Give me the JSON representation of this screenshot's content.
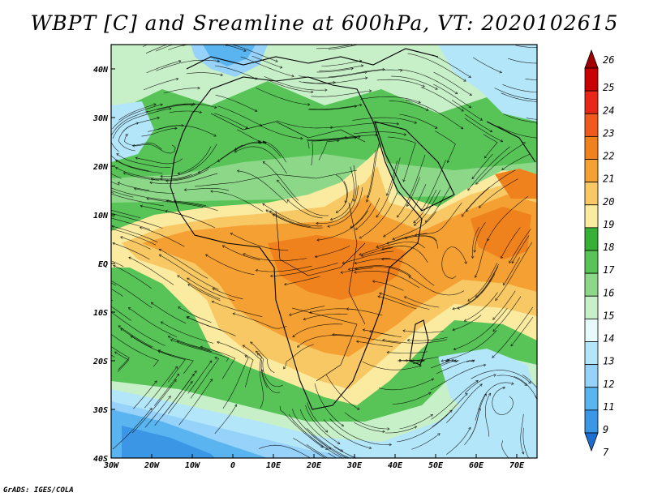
{
  "title": "WBPT [C] and Sreamline at 600hPa, VT: 2020102615",
  "credit": "GrADS: IGES/COLA",
  "map": {
    "variable": "WBPT",
    "units": "C",
    "level": "600hPa",
    "valid_time": "2020102615",
    "lon_range": [
      -30,
      75
    ],
    "lat_range": [
      -40,
      45
    ],
    "lat_ticks": [
      {
        "value": 40,
        "label": "40N"
      },
      {
        "value": 30,
        "label": "30N"
      },
      {
        "value": 20,
        "label": "20N"
      },
      {
        "value": 10,
        "label": "10N"
      },
      {
        "value": 0,
        "label": "EQ"
      },
      {
        "value": -10,
        "label": "10S"
      },
      {
        "value": -20,
        "label": "20S"
      },
      {
        "value": -30,
        "label": "30S"
      },
      {
        "value": -40,
        "label": "40S"
      }
    ],
    "lon_ticks": [
      {
        "value": -30,
        "label": "30W"
      },
      {
        "value": -20,
        "label": "20W"
      },
      {
        "value": -10,
        "label": "10W"
      },
      {
        "value": 0,
        "label": "0"
      },
      {
        "value": 10,
        "label": "10E"
      },
      {
        "value": 20,
        "label": "20E"
      },
      {
        "value": 30,
        "label": "30E"
      },
      {
        "value": 40,
        "label": "40E"
      },
      {
        "value": 50,
        "label": "50E"
      },
      {
        "value": 60,
        "label": "60E"
      },
      {
        "value": 70,
        "label": "70E"
      }
    ]
  },
  "colorbar": {
    "levels": [
      "26",
      "25",
      "24",
      "23",
      "22",
      "21",
      "20",
      "19",
      "18",
      "17",
      "16",
      "15",
      "14",
      "13",
      "12",
      "11",
      "9",
      "7"
    ],
    "colors": [
      "#a00000",
      "#c80000",
      "#e8261a",
      "#f05a1e",
      "#f0821e",
      "#f5a032",
      "#f8c864",
      "#faeba0",
      "#38b038",
      "#58c458",
      "#8cd888",
      "#c8f0c8",
      "#e6fafa",
      "#b4e6fa",
      "#96d2fa",
      "#5ab4f0",
      "#3c96e6",
      "#1e6ed2"
    ]
  }
}
